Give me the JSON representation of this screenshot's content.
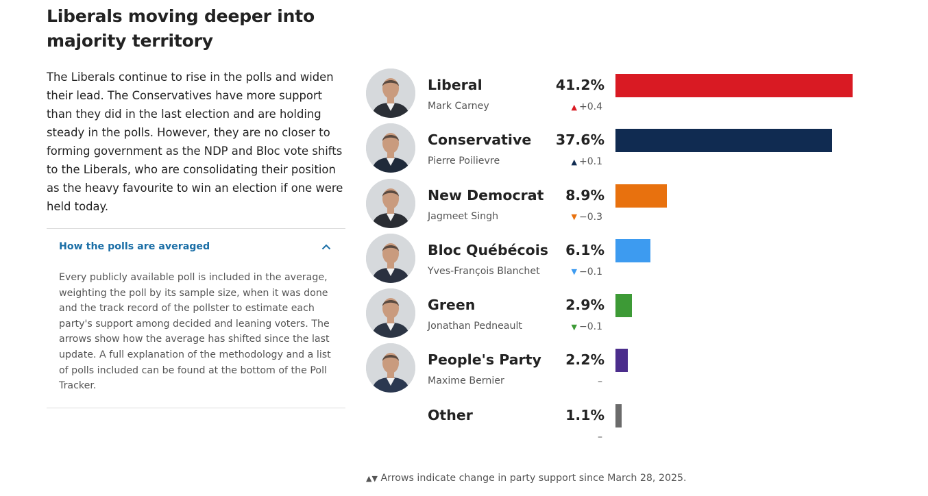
{
  "title": "Liberals moving deeper into majority territory",
  "description": "The Liberals continue to rise in the polls and widen their lead. The Conservatives have more support than they did in the last election and are holding steady in the polls. However, they are no closer to forming government as the NDP and Bloc vote shifts to the Liberals, who are consolidating their position as the heavy favourite to win an election if one were held today.",
  "accordion": {
    "title": "How the polls are averaged",
    "body": "Every publicly available poll is included in the average, weighting the poll by its sample size, when it was done and the track record of the pollster to estimate each party's support among decided and leaning voters. The arrows show how the average has shifted since the last update. A full explanation of the methodology and a list of polls included can be found at the bottom of the Poll Tracker."
  },
  "footnote": {
    "arrows": "▲▼",
    "text": "Arrows indicate change in party support since March 28, 2025."
  },
  "chart_data": {
    "type": "bar",
    "orientation": "horizontal",
    "max": 41.2,
    "parties": [
      {
        "name": "Liberal",
        "leader": "Mark Carney",
        "value": 41.2,
        "value_label": "41.2%",
        "change": "+0.4",
        "direction": "up",
        "color": "#d91a23",
        "has_photo": true
      },
      {
        "name": "Conservative",
        "leader": "Pierre Poilievre",
        "value": 37.6,
        "value_label": "37.6%",
        "change": "+0.1",
        "direction": "up",
        "color": "#102b51",
        "has_photo": true
      },
      {
        "name": "New Democrat",
        "leader": "Jagmeet Singh",
        "value": 8.9,
        "value_label": "8.9%",
        "change": "−0.3",
        "direction": "down",
        "color": "#e8710e",
        "has_photo": true
      },
      {
        "name": "Bloc Québécois",
        "leader": "Yves-François Blanchet",
        "value": 6.1,
        "value_label": "6.1%",
        "change": "−0.1",
        "direction": "down",
        "color": "#3d9bf0",
        "has_photo": true
      },
      {
        "name": "Green",
        "leader": "Jonathan Pedneault",
        "value": 2.9,
        "value_label": "2.9%",
        "change": "−0.1",
        "direction": "down",
        "color": "#3d9a36",
        "has_photo": true
      },
      {
        "name": "People's Party",
        "leader": "Maxime Bernier",
        "value": 2.2,
        "value_label": "2.2%",
        "change": "–",
        "direction": "none",
        "color": "#4b2d8c",
        "has_photo": true
      },
      {
        "name": "Other",
        "leader": "",
        "value": 1.1,
        "value_label": "1.1%",
        "change": "–",
        "direction": "none",
        "color": "#6b6b6b",
        "has_photo": false
      }
    ]
  }
}
